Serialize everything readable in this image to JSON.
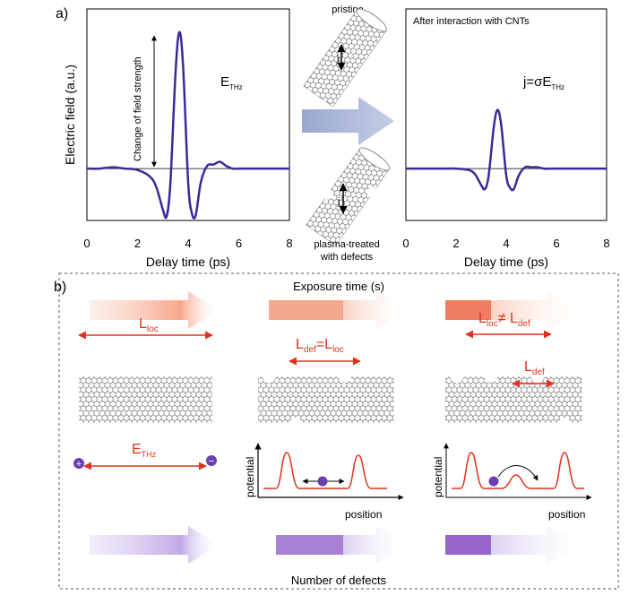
{
  "panel_a": {
    "label": "a)",
    "pristine_label": "pristine",
    "treated_label": [
      "plasma-treated",
      "with defects"
    ],
    "current_label": "j"
  },
  "chart_data": [
    {
      "type": "line",
      "xlabel": "Delay time (ps)",
      "ylabel": "Electric field (a.u.)",
      "annotation": "Change of field strength",
      "field_label": {
        "main": "E",
        "sub": "THz"
      },
      "x": [
        0,
        0.5,
        1,
        1.5,
        2,
        2.5,
        2.75,
        3,
        3.15,
        3.3,
        3.5,
        3.65,
        3.8,
        4,
        4.15,
        4.3,
        4.5,
        4.75,
        5,
        5.25,
        5.5,
        5.75,
        6,
        7,
        8
      ],
      "series": [
        {
          "color": "#3b2a96",
          "values": [
            0,
            0,
            0.01,
            0,
            -0.01,
            -0.06,
            -0.14,
            -0.3,
            -0.35,
            -0.1,
            0.7,
            1.0,
            0.75,
            -0.1,
            -0.33,
            -0.34,
            -0.1,
            0.02,
            0.03,
            0.05,
            0.02,
            0,
            0,
            0,
            0
          ]
        }
      ],
      "xlim": [
        0,
        8
      ],
      "xticks": [
        0,
        2,
        4,
        6,
        8
      ],
      "ylim": [
        -0.38,
        1.17
      ]
    },
    {
      "type": "line",
      "xlabel": "Delay time (ps)",
      "title": "After interaction with CNTs",
      "formula": {
        "main": "j=σE",
        "sub": "THz"
      },
      "x": [
        0,
        0.5,
        1,
        1.5,
        2,
        2.5,
        2.75,
        3,
        3.15,
        3.3,
        3.5,
        3.65,
        3.8,
        4,
        4.15,
        4.3,
        4.5,
        4.75,
        5,
        5.25,
        5.5,
        5.75,
        6,
        7,
        8
      ],
      "series": [
        {
          "color": "#3b2a96",
          "values": [
            0,
            0,
            0,
            0,
            0,
            -0.01,
            -0.04,
            -0.12,
            -0.15,
            -0.05,
            0.3,
            0.43,
            0.32,
            -0.05,
            -0.14,
            -0.15,
            -0.05,
            0.01,
            0.01,
            0.01,
            0,
            0,
            0,
            0,
            0
          ]
        }
      ],
      "xlim": [
        0,
        8
      ],
      "xticks": [
        0,
        2,
        4,
        6,
        8
      ],
      "ylim": [
        -0.38,
        1.17
      ]
    }
  ],
  "panel_b": {
    "label": "b)",
    "top_axis": "Exposure time (s)",
    "bottom_axis": "Number of defects",
    "l_loc": {
      "main": "L",
      "sub": "loc"
    },
    "l_def_eq": {
      "a": "L",
      "a_sub": "def",
      "op": "=",
      "b": "L",
      "b_sub": "loc"
    },
    "l_neq": {
      "a": "L",
      "a_sub": "loc",
      "op": "≠ ",
      "b": "L",
      "b_sub": "def"
    },
    "l_def": {
      "main": "L",
      "sub": "def"
    },
    "e_thz": {
      "main": "E",
      "sub": "THz"
    },
    "plus": "+",
    "minus": "−",
    "potential_axis": "potential",
    "position_axis": "position"
  }
}
